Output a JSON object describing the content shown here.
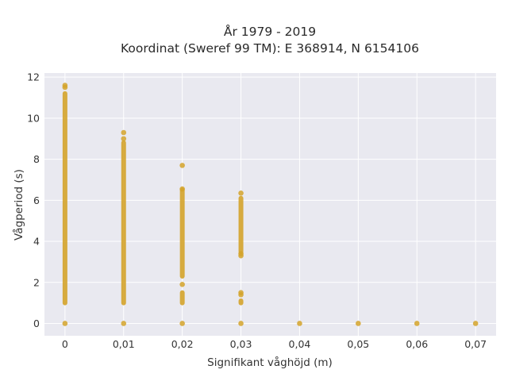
{
  "chart_data": {
    "type": "scatter",
    "title_lines": [
      "År 1979 - 2019",
      "Koordinat (Sweref 99 TM): E 368914, N 6154106"
    ],
    "xlabel": "Signifikant våghöjd (m)",
    "ylabel": "Vågperiod (s)",
    "xlim": [
      -0.0035,
      0.0735
    ],
    "ylim": [
      -0.6,
      12.2
    ],
    "x_ticks": [
      0,
      0.01,
      0.02,
      0.03,
      0.04,
      0.05,
      0.06,
      0.07
    ],
    "x_tick_labels": [
      "0",
      "0,01",
      "0,02",
      "0,03",
      "0,04",
      "0,05",
      "0,06",
      "0,07"
    ],
    "y_ticks": [
      0,
      2,
      4,
      6,
      8,
      10,
      12
    ],
    "y_tick_labels": [
      "0",
      "2",
      "4",
      "6",
      "8",
      "10",
      "12"
    ],
    "grid": true,
    "marker_color": "#d4a32a",
    "plot_background": "#e9e9f0",
    "grid_color": "#ffffff",
    "series": [
      {
        "segments": [
          {
            "x": 0.0,
            "y_from": 1.0,
            "y_to": 11.2
          },
          {
            "x": 0.01,
            "y_from": 1.0,
            "y_to": 8.8
          },
          {
            "x": 0.02,
            "y_from": 2.3,
            "y_to": 6.5
          },
          {
            "x": 0.02,
            "y_from": 1.0,
            "y_to": 1.5
          },
          {
            "x": 0.03,
            "y_from": 3.5,
            "y_to": 6.1
          },
          {
            "x": 0.03,
            "y_from": 1.0,
            "y_to": 1.1
          }
        ],
        "points": [
          {
            "x": 0.0,
            "y": 11.6
          },
          {
            "x": 0.0,
            "y": 11.5
          },
          {
            "x": 0.0,
            "y": 0.0
          },
          {
            "x": 0.01,
            "y": 9.3
          },
          {
            "x": 0.01,
            "y": 9.0
          },
          {
            "x": 0.01,
            "y": 0.0
          },
          {
            "x": 0.02,
            "y": 7.7
          },
          {
            "x": 0.02,
            "y": 6.55
          },
          {
            "x": 0.02,
            "y": 1.9
          },
          {
            "x": 0.02,
            "y": 0.0
          },
          {
            "x": 0.03,
            "y": 6.35
          },
          {
            "x": 0.03,
            "y": 3.4
          },
          {
            "x": 0.03,
            "y": 3.3
          },
          {
            "x": 0.03,
            "y": 1.5
          },
          {
            "x": 0.03,
            "y": 1.4
          },
          {
            "x": 0.03,
            "y": 0.0
          },
          {
            "x": 0.04,
            "y": 0.0
          },
          {
            "x": 0.05,
            "y": 0.0
          },
          {
            "x": 0.06,
            "y": 0.0
          },
          {
            "x": 0.07,
            "y": 0.0
          }
        ]
      }
    ]
  }
}
